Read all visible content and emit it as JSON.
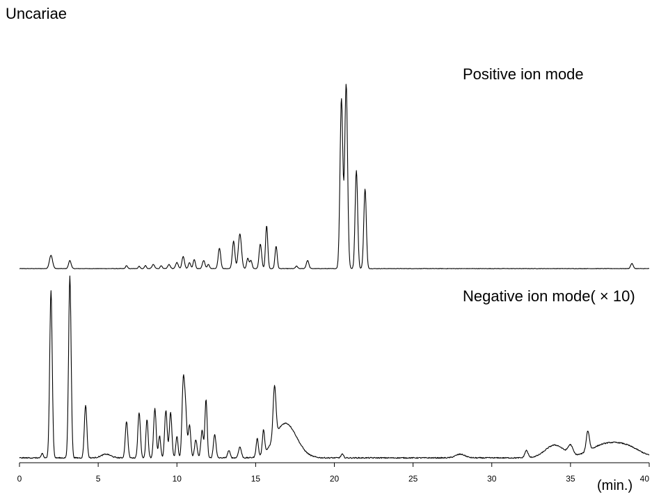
{
  "chart_data": {
    "type": "line",
    "title": "Uncariae",
    "xlabel": "(min.)",
    "ylabel": "",
    "xlim": [
      0,
      40
    ],
    "x_ticks": [
      "0",
      "5",
      "10",
      "15",
      "20",
      "25",
      "30",
      "35",
      "40"
    ],
    "grid": false,
    "y_axis_shown": false,
    "series": [
      {
        "name": "Positive ion mode",
        "baseline_noise": 0.002,
        "peaks": [
          [
            2.0,
            0.065,
            0.1
          ],
          [
            3.2,
            0.04,
            0.08
          ],
          [
            6.8,
            0.015,
            0.06
          ],
          [
            7.6,
            0.012,
            0.06
          ],
          [
            8.0,
            0.015,
            0.06
          ],
          [
            8.5,
            0.02,
            0.08
          ],
          [
            9.0,
            0.015,
            0.06
          ],
          [
            9.5,
            0.02,
            0.08
          ],
          [
            10.0,
            0.03,
            0.08
          ],
          [
            10.4,
            0.06,
            0.08
          ],
          [
            10.8,
            0.03,
            0.07
          ],
          [
            11.1,
            0.045,
            0.07
          ],
          [
            11.7,
            0.04,
            0.08
          ],
          [
            12.0,
            0.02,
            0.07
          ],
          [
            12.7,
            0.1,
            0.08
          ],
          [
            13.6,
            0.135,
            0.08
          ],
          [
            14.0,
            0.17,
            0.1
          ],
          [
            14.5,
            0.05,
            0.07
          ],
          [
            14.7,
            0.04,
            0.07
          ],
          [
            15.3,
            0.12,
            0.08
          ],
          [
            15.7,
            0.21,
            0.07
          ],
          [
            16.3,
            0.11,
            0.07
          ],
          [
            17.6,
            0.012,
            0.07
          ],
          [
            18.3,
            0.04,
            0.08
          ],
          [
            20.45,
            0.83,
            0.09
          ],
          [
            20.75,
            0.9,
            0.09
          ],
          [
            21.4,
            0.48,
            0.08
          ],
          [
            21.95,
            0.39,
            0.08
          ],
          [
            38.9,
            0.025,
            0.08
          ]
        ]
      },
      {
        "name": "Negative ion mode( × 10)",
        "baseline_noise": 0.006,
        "peaks": [
          [
            1.45,
            0.025,
            0.06
          ],
          [
            2.0,
            0.92,
            0.08
          ],
          [
            3.2,
            1.0,
            0.08
          ],
          [
            4.2,
            0.29,
            0.08
          ],
          [
            5.5,
            0.02,
            0.3
          ],
          [
            6.8,
            0.2,
            0.08
          ],
          [
            7.6,
            0.25,
            0.08
          ],
          [
            8.1,
            0.21,
            0.07
          ],
          [
            8.6,
            0.27,
            0.08
          ],
          [
            8.9,
            0.12,
            0.07
          ],
          [
            9.3,
            0.26,
            0.08
          ],
          [
            9.6,
            0.25,
            0.08
          ],
          [
            10.0,
            0.12,
            0.07
          ],
          [
            10.4,
            0.4,
            0.08
          ],
          [
            10.55,
            0.25,
            0.08
          ],
          [
            10.8,
            0.18,
            0.08
          ],
          [
            11.2,
            0.1,
            0.08
          ],
          [
            11.6,
            0.15,
            0.08
          ],
          [
            11.85,
            0.32,
            0.07
          ],
          [
            12.4,
            0.13,
            0.08
          ],
          [
            13.3,
            0.04,
            0.08
          ],
          [
            14.0,
            0.06,
            0.09
          ],
          [
            15.1,
            0.1,
            0.07
          ],
          [
            15.5,
            0.13,
            0.07
          ],
          [
            16.2,
            0.28,
            0.09
          ],
          [
            16.9,
            0.19,
            0.7
          ],
          [
            20.5,
            0.02,
            0.08
          ],
          [
            28.0,
            0.02,
            0.3
          ],
          [
            32.2,
            0.04,
            0.1
          ],
          [
            34.0,
            0.07,
            0.6
          ],
          [
            35.0,
            0.05,
            0.15
          ],
          [
            36.1,
            0.11,
            0.1
          ],
          [
            37.0,
            0.06,
            0.9
          ],
          [
            38.5,
            0.06,
            0.9
          ]
        ]
      }
    ]
  }
}
